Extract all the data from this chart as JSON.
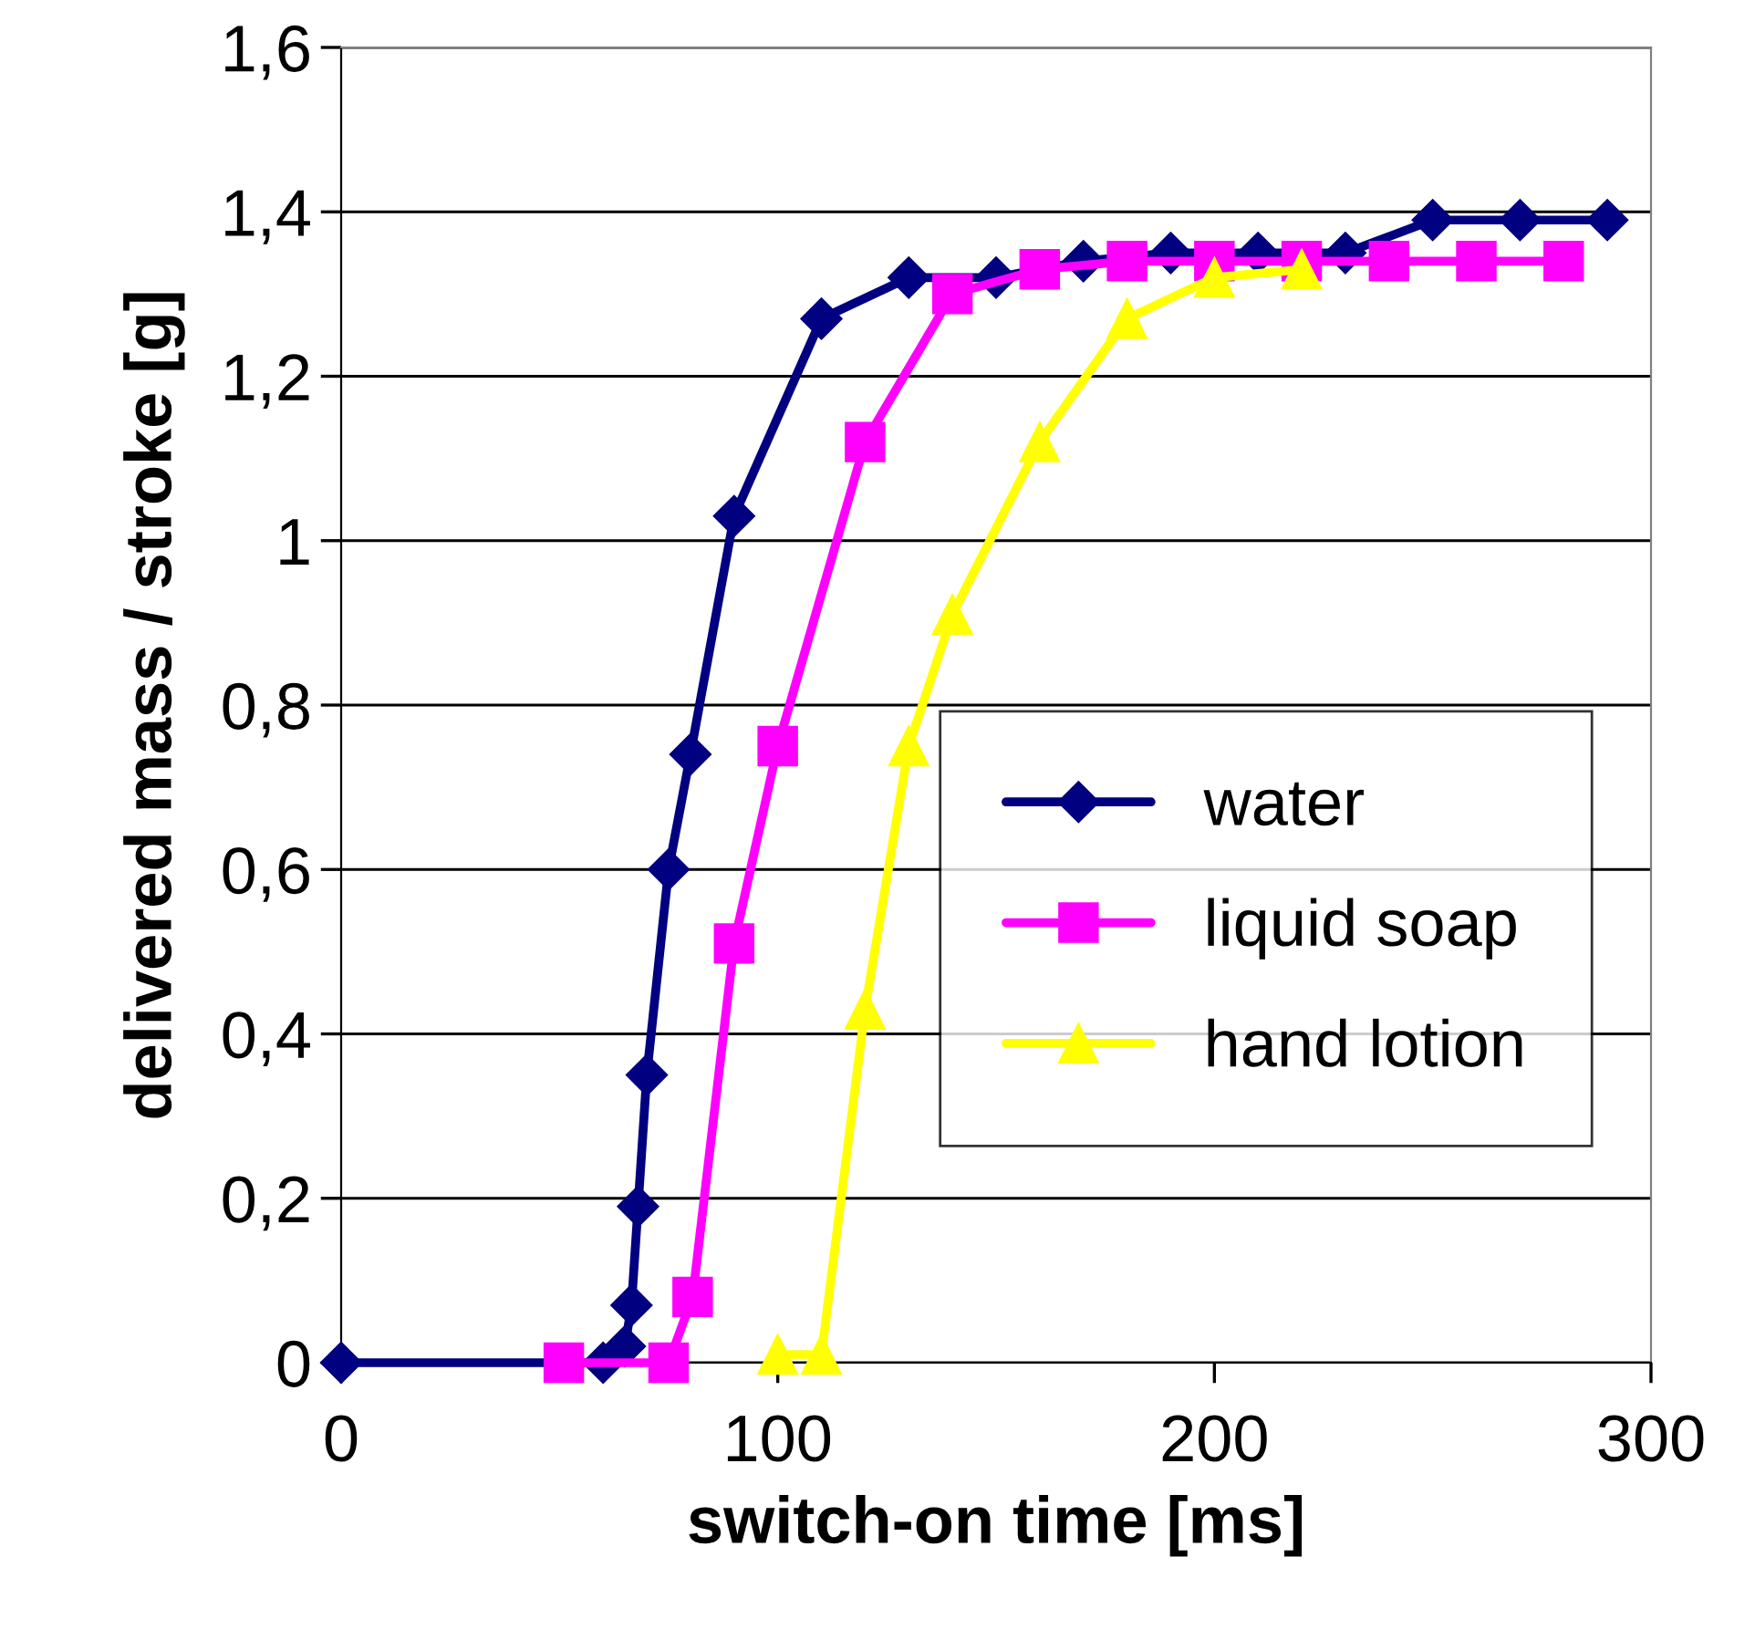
{
  "chart_data": {
    "type": "line",
    "xlabel": "switch-on time [ms]",
    "ylabel": "delivered mass / stroke [g]",
    "xlim": [
      0,
      300
    ],
    "xticks": [
      0,
      100,
      200,
      300
    ],
    "ylim": [
      0,
      1.6
    ],
    "yticks": [
      0,
      {
        "value": 0.2,
        "label": "0,2"
      },
      {
        "value": 0.4,
        "label": "0,4"
      },
      {
        "value": 0.6,
        "label": "0,6"
      },
      {
        "value": 0.8,
        "label": "0,8"
      },
      1,
      {
        "value": 1.2,
        "label": "1,2"
      },
      {
        "value": 1.4,
        "label": "1,4"
      },
      {
        "value": 1.6,
        "label": "1,6"
      }
    ],
    "grid": "y",
    "legend": "right",
    "line_style": "solid",
    "series": [
      {
        "name": "water",
        "color": "#000080",
        "marker": "diamond",
        "x": [
          0,
          60,
          65,
          66.5,
          68,
          70,
          75,
          80,
          90,
          110,
          130,
          150,
          170,
          190,
          210,
          230,
          250,
          270,
          290
        ],
        "values": [
          0,
          0,
          0.02,
          0.07,
          0.19,
          0.35,
          0.6,
          0.74,
          1.03,
          1.27,
          1.32,
          1.32,
          1.34,
          1.35,
          1.35,
          1.35,
          1.39,
          1.39,
          1.39
        ]
      },
      {
        "name": "liquid soap",
        "color": "#ff00ff",
        "marker": "square",
        "x": [
          51,
          75,
          80.5,
          90,
          100,
          120,
          140,
          160,
          180,
          200,
          220,
          240,
          260,
          280
        ],
        "values": [
          0,
          0,
          0.08,
          0.51,
          0.75,
          1.12,
          1.3,
          1.33,
          1.34,
          1.34,
          1.34,
          1.34,
          1.34,
          1.34
        ]
      },
      {
        "name": "hand lotion",
        "color": "#ffff00",
        "marker": "triangle",
        "x": [
          100,
          110,
          120,
          130,
          140,
          160,
          180,
          200,
          220
        ],
        "values": [
          0.01,
          0.01,
          0.43,
          0.75,
          0.91,
          1.12,
          1.27,
          1.32,
          1.33
        ]
      }
    ]
  }
}
